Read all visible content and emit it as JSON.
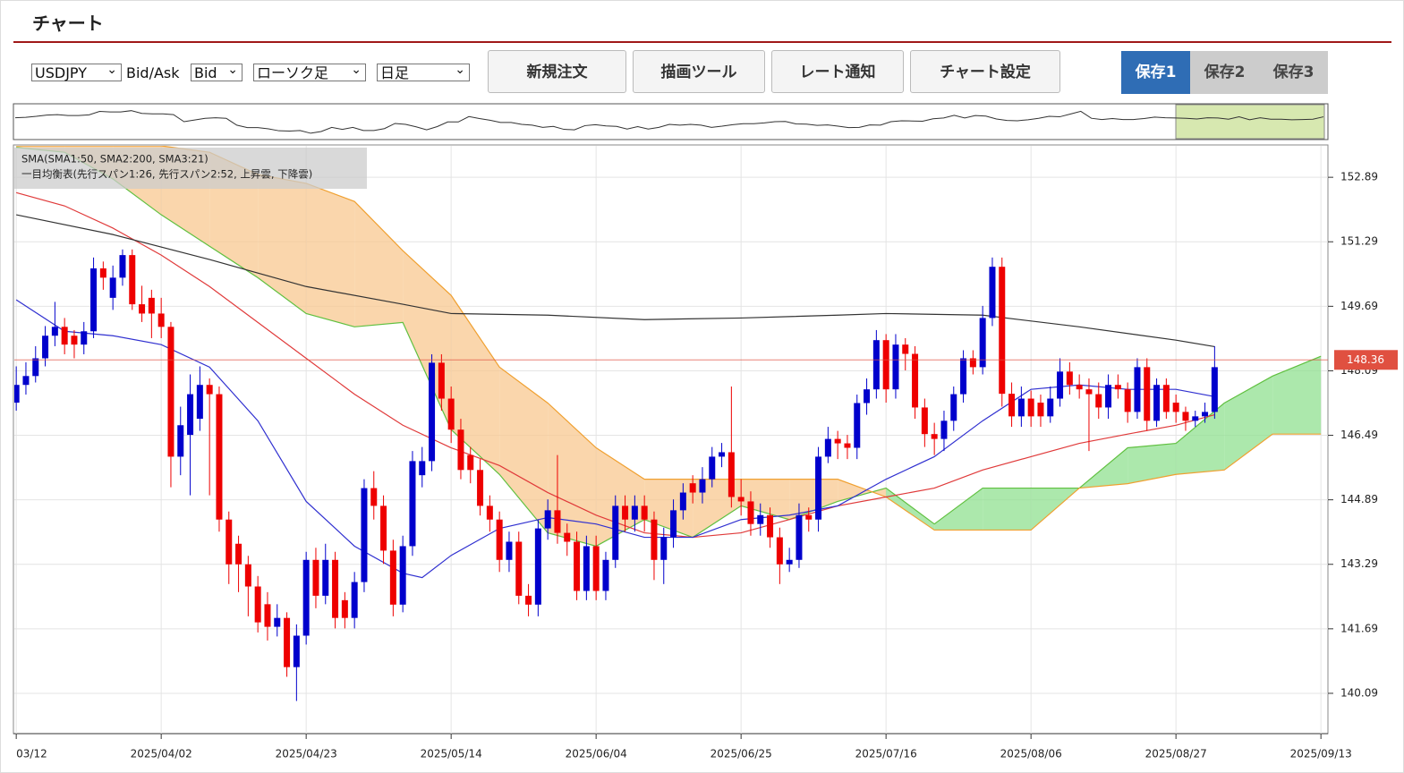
{
  "header": {
    "title": "チャート"
  },
  "toolbar": {
    "symbol": "USDJPY",
    "bid_ask_label": "Bid/Ask",
    "price_side": "Bid",
    "chart_style": "ローソク足",
    "timeframe": "日足",
    "buttons": [
      "新規注文",
      "描画ツール",
      "レート通知",
      "チャート設定"
    ],
    "save_tabs": [
      "保存1",
      "保存2",
      "保存3"
    ],
    "active_save_tab": 0
  },
  "chart_data": {
    "type": "candlestick",
    "legend_lines": [
      "SMA(SMA1:50, SMA2:200, SMA3:21)",
      "一目均衡表(先行スパン1:26, 先行スパン2:52, 上昇雲, 下降雲)"
    ],
    "up_color": "#0000cc",
    "down_color": "#ee0000",
    "xlim": [
      -0.2,
      135.8
    ],
    "xticks": [
      {
        "value": 0,
        "label": "03/12"
      },
      {
        "value": 15,
        "label": "2025/04/02"
      },
      {
        "value": 30,
        "label": "2025/04/23"
      },
      {
        "value": 45,
        "label": "2025/05/14"
      },
      {
        "value": 60,
        "label": "2025/06/04"
      },
      {
        "value": 75,
        "label": "2025/06/25"
      },
      {
        "value": 90,
        "label": "2025/07/16"
      },
      {
        "value": 105,
        "label": "2025/08/06"
      },
      {
        "value": 120,
        "label": "2025/08/27"
      },
      {
        "value": 135,
        "label": "2025/09/13"
      }
    ],
    "ylim": [
      139.09,
      153.67
    ],
    "yticks": [
      140.09,
      141.69,
      143.29,
      144.89,
      146.49,
      148.09,
      149.69,
      151.29,
      152.89
    ],
    "grid": true,
    "current_price": 148.36,
    "current_price_color": "#e05040",
    "candles": [
      [
        147.3,
        148.2,
        147.1,
        147.74
      ],
      [
        147.74,
        148.3,
        147.5,
        147.96
      ],
      [
        147.96,
        148.7,
        147.8,
        148.4
      ],
      [
        148.4,
        149.2,
        148.2,
        148.96
      ],
      [
        148.96,
        149.8,
        148.7,
        149.18
      ],
      [
        149.18,
        149.4,
        148.5,
        148.74
      ],
      [
        148.96,
        149.1,
        148.4,
        148.74
      ],
      [
        148.74,
        149.3,
        148.5,
        149.07
      ],
      [
        149.07,
        150.9,
        148.9,
        150.63
      ],
      [
        150.63,
        150.8,
        150.1,
        150.4
      ],
      [
        149.9,
        150.7,
        149.6,
        150.4
      ],
      [
        150.4,
        151.1,
        150.2,
        150.96
      ],
      [
        150.96,
        151.1,
        149.6,
        149.74
      ],
      [
        149.74,
        150.2,
        149.3,
        149.51
      ],
      [
        149.9,
        150.1,
        148.9,
        149.51
      ],
      [
        149.51,
        149.9,
        148.9,
        149.18
      ],
      [
        149.18,
        149.3,
        145.2,
        145.96
      ],
      [
        145.96,
        147.2,
        145.5,
        146.74
      ],
      [
        146.5,
        148.0,
        145.0,
        147.51
      ],
      [
        146.9,
        148.2,
        146.6,
        147.74
      ],
      [
        147.74,
        147.9,
        145.0,
        147.51
      ],
      [
        147.51,
        147.7,
        144.1,
        144.4
      ],
      [
        144.4,
        144.6,
        142.8,
        143.29
      ],
      [
        143.8,
        144.0,
        142.6,
        143.29
      ],
      [
        143.29,
        143.5,
        142.0,
        142.74
      ],
      [
        142.74,
        143.0,
        141.6,
        141.85
      ],
      [
        142.3,
        142.6,
        141.4,
        141.74
      ],
      [
        141.74,
        142.3,
        141.5,
        141.96
      ],
      [
        141.96,
        142.1,
        140.5,
        140.74
      ],
      [
        140.74,
        141.8,
        139.9,
        141.52
      ],
      [
        141.52,
        143.6,
        141.3,
        143.4
      ],
      [
        143.4,
        143.7,
        142.2,
        142.51
      ],
      [
        142.51,
        143.8,
        142.3,
        143.4
      ],
      [
        143.4,
        143.6,
        141.7,
        141.96
      ],
      [
        142.4,
        142.6,
        141.7,
        141.96
      ],
      [
        141.96,
        143.1,
        141.7,
        142.85
      ],
      [
        142.85,
        145.4,
        142.6,
        145.18
      ],
      [
        145.18,
        145.6,
        144.4,
        144.74
      ],
      [
        144.74,
        145.0,
        143.3,
        143.63
      ],
      [
        143.63,
        143.9,
        142.0,
        142.29
      ],
      [
        142.29,
        144.0,
        142.1,
        143.74
      ],
      [
        143.74,
        146.1,
        143.5,
        145.85
      ],
      [
        145.5,
        146.2,
        145.2,
        145.85
      ],
      [
        145.85,
        148.5,
        145.6,
        148.29
      ],
      [
        148.29,
        148.5,
        147.1,
        147.4
      ],
      [
        147.4,
        147.7,
        146.3,
        146.63
      ],
      [
        146.63,
        146.9,
        145.4,
        145.63
      ],
      [
        146.0,
        146.2,
        145.3,
        145.63
      ],
      [
        145.63,
        145.9,
        144.5,
        144.74
      ],
      [
        144.74,
        145.0,
        144.1,
        144.4
      ],
      [
        144.4,
        144.6,
        143.1,
        143.4
      ],
      [
        143.4,
        144.1,
        143.1,
        143.85
      ],
      [
        143.85,
        144.1,
        142.3,
        142.51
      ],
      [
        142.51,
        142.8,
        142.0,
        142.29
      ],
      [
        142.29,
        144.4,
        142.0,
        144.18
      ],
      [
        144.18,
        144.9,
        143.9,
        144.63
      ],
      [
        144.63,
        146.0,
        143.8,
        144.07
      ],
      [
        144.07,
        144.3,
        143.5,
        143.85
      ],
      [
        143.85,
        144.1,
        142.4,
        142.63
      ],
      [
        142.63,
        144.0,
        142.4,
        143.74
      ],
      [
        143.74,
        144.0,
        142.4,
        142.63
      ],
      [
        142.63,
        143.6,
        142.4,
        143.4
      ],
      [
        143.4,
        145.0,
        143.2,
        144.74
      ],
      [
        144.74,
        145.0,
        144.1,
        144.4
      ],
      [
        144.4,
        145.0,
        144.1,
        144.74
      ],
      [
        144.74,
        145.0,
        144.1,
        144.4
      ],
      [
        144.4,
        144.6,
        142.9,
        143.4
      ],
      [
        143.4,
        144.2,
        142.8,
        143.96
      ],
      [
        143.96,
        144.9,
        143.7,
        144.63
      ],
      [
        144.63,
        145.3,
        144.4,
        145.07
      ],
      [
        145.3,
        145.5,
        144.8,
        145.07
      ],
      [
        145.07,
        145.7,
        144.8,
        145.4
      ],
      [
        145.4,
        146.2,
        145.2,
        145.96
      ],
      [
        145.96,
        146.3,
        145.7,
        146.07
      ],
      [
        146.07,
        147.7,
        144.7,
        144.96
      ],
      [
        144.96,
        145.4,
        144.5,
        144.85
      ],
      [
        144.85,
        145.1,
        144.0,
        144.29
      ],
      [
        144.29,
        144.8,
        144.0,
        144.51
      ],
      [
        144.51,
        144.7,
        143.7,
        143.96
      ],
      [
        143.96,
        144.2,
        142.8,
        143.29
      ],
      [
        143.29,
        143.7,
        143.1,
        143.4
      ],
      [
        143.4,
        144.8,
        143.2,
        144.51
      ],
      [
        144.51,
        144.7,
        144.1,
        144.4
      ],
      [
        144.4,
        146.2,
        144.1,
        145.96
      ],
      [
        145.96,
        146.7,
        145.8,
        146.4
      ],
      [
        146.4,
        146.6,
        145.9,
        146.29
      ],
      [
        146.29,
        146.5,
        145.9,
        146.18
      ],
      [
        146.18,
        147.5,
        145.9,
        147.29
      ],
      [
        147.29,
        147.9,
        147.0,
        147.63
      ],
      [
        147.63,
        149.1,
        147.4,
        148.85
      ],
      [
        148.85,
        149.0,
        147.3,
        147.63
      ],
      [
        147.63,
        149.0,
        147.4,
        148.74
      ],
      [
        148.74,
        148.9,
        148.1,
        148.51
      ],
      [
        148.51,
        148.7,
        146.9,
        147.18
      ],
      [
        147.18,
        147.4,
        146.2,
        146.52
      ],
      [
        146.52,
        146.8,
        146.0,
        146.4
      ],
      [
        146.4,
        147.1,
        146.1,
        146.85
      ],
      [
        146.85,
        147.7,
        146.6,
        147.51
      ],
      [
        147.51,
        148.6,
        147.3,
        148.4
      ],
      [
        148.4,
        148.6,
        148.0,
        148.18
      ],
      [
        148.18,
        149.7,
        148.0,
        149.4
      ],
      [
        149.4,
        150.9,
        149.2,
        150.67
      ],
      [
        150.67,
        150.9,
        147.2,
        147.52
      ],
      [
        147.52,
        147.8,
        146.7,
        146.96
      ],
      [
        146.96,
        147.7,
        146.7,
        147.4
      ],
      [
        147.4,
        147.6,
        146.7,
        146.96
      ],
      [
        147.3,
        147.5,
        146.7,
        146.96
      ],
      [
        146.96,
        147.7,
        146.8,
        147.4
      ],
      [
        147.4,
        148.4,
        147.2,
        148.07
      ],
      [
        148.07,
        148.3,
        147.5,
        147.74
      ],
      [
        147.74,
        148.0,
        147.4,
        147.63
      ],
      [
        147.63,
        147.9,
        146.1,
        147.51
      ],
      [
        147.51,
        147.8,
        146.9,
        147.18
      ],
      [
        147.18,
        148.0,
        146.9,
        147.74
      ],
      [
        147.74,
        148.0,
        147.4,
        147.63
      ],
      [
        147.63,
        147.8,
        146.8,
        147.07
      ],
      [
        147.07,
        148.4,
        146.9,
        148.18
      ],
      [
        148.18,
        148.4,
        146.6,
        146.85
      ],
      [
        146.85,
        147.9,
        146.7,
        147.74
      ],
      [
        147.74,
        147.9,
        146.9,
        147.07
      ],
      [
        147.3,
        147.5,
        146.8,
        147.07
      ],
      [
        147.07,
        147.2,
        146.6,
        146.85
      ],
      [
        146.85,
        147.1,
        146.7,
        146.96
      ],
      [
        146.96,
        147.3,
        146.8,
        147.07
      ],
      [
        147.07,
        148.7,
        146.9,
        148.18
      ]
    ],
    "lines": [
      {
        "color": "#e03a3a",
        "x": [
          0,
          5,
          10,
          15,
          20,
          25,
          30,
          35,
          40,
          45,
          50,
          55,
          60,
          65,
          70,
          75,
          80,
          85,
          90,
          95,
          100,
          105,
          110,
          115,
          120,
          124
        ],
        "values": [
          152.51,
          152.18,
          151.63,
          150.96,
          150.18,
          149.29,
          148.4,
          147.51,
          146.74,
          146.18,
          145.74,
          145.07,
          144.51,
          144.07,
          143.96,
          144.07,
          144.4,
          144.74,
          144.96,
          145.18,
          145.63,
          145.96,
          146.29,
          146.52,
          146.74,
          147.0
        ]
      },
      {
        "color": "#333333",
        "x": [
          0,
          10,
          20,
          30,
          40,
          45,
          55,
          65,
          75,
          85,
          90,
          100,
          110,
          120,
          124
        ],
        "values": [
          151.96,
          151.47,
          150.85,
          150.18,
          149.74,
          149.51,
          149.47,
          149.36,
          149.4,
          149.47,
          149.51,
          149.47,
          149.18,
          148.85,
          148.69
        ]
      },
      {
        "color": "#3030d0",
        "x": [
          0,
          5,
          10,
          15,
          20,
          25,
          30,
          35,
          40,
          42,
          45,
          50,
          55,
          60,
          65,
          70,
          75,
          80,
          85,
          90,
          95,
          100,
          105,
          110,
          115,
          120,
          124
        ],
        "values": [
          149.85,
          149.07,
          148.96,
          148.74,
          148.18,
          146.85,
          144.85,
          143.74,
          143.07,
          142.96,
          143.51,
          144.18,
          144.45,
          144.29,
          143.96,
          143.96,
          144.4,
          144.51,
          144.74,
          145.4,
          145.96,
          146.85,
          147.63,
          147.74,
          147.63,
          147.63,
          147.45
        ]
      }
    ],
    "cloud": {
      "x": [
        0,
        5,
        10,
        15,
        20,
        25,
        30,
        35,
        40,
        45,
        50,
        55,
        60,
        65,
        70,
        75,
        80,
        85,
        90,
        95,
        100,
        105,
        110,
        115,
        120,
        125,
        130,
        135
      ],
      "span1": [
        153.63,
        153.51,
        152.85,
        151.96,
        151.18,
        150.4,
        149.51,
        149.18,
        149.29,
        146.63,
        145.52,
        144.07,
        143.74,
        144.4,
        143.96,
        144.74,
        144.4,
        144.85,
        145.18,
        144.29,
        145.18,
        145.18,
        145.18,
        146.18,
        146.29,
        147.29,
        147.96,
        148.45
      ],
      "span2": [
        153.67,
        153.67,
        153.67,
        153.67,
        153.51,
        152.96,
        152.74,
        152.29,
        151.07,
        149.96,
        148.18,
        147.29,
        146.18,
        145.4,
        145.4,
        145.4,
        145.4,
        145.4,
        144.96,
        144.14,
        144.14,
        144.14,
        145.18,
        145.29,
        145.52,
        145.63,
        146.52,
        146.52
      ],
      "up_color": "#90e090",
      "down_color": "#f8c890",
      "span1_color": "#60c040",
      "span2_color": "#f0a030"
    }
  }
}
